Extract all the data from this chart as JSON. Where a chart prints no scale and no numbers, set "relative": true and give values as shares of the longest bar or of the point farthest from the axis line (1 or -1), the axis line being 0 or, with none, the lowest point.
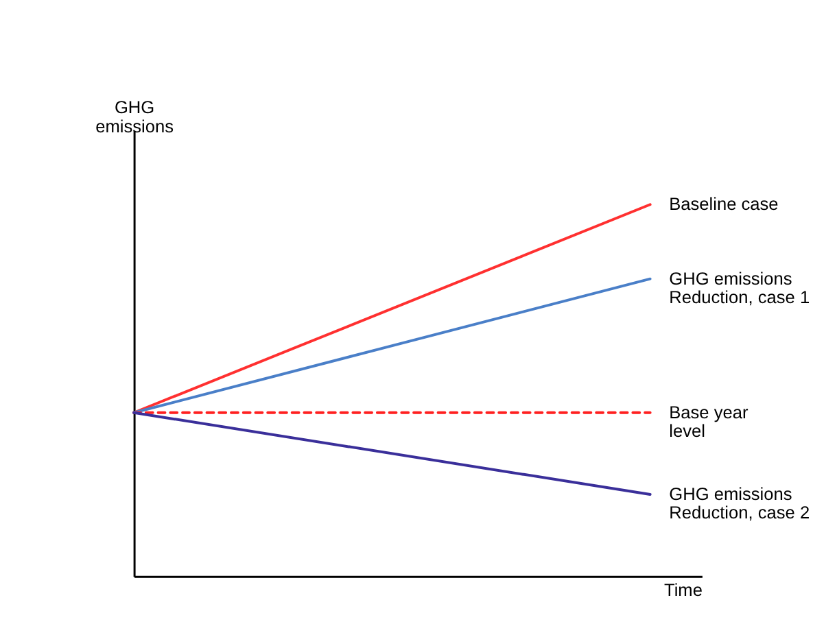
{
  "chart_data": {
    "type": "line",
    "relative": true,
    "xlabel": "Time",
    "ylabel": "GHG\nemissions",
    "categories": [
      null,
      null
    ],
    "series": [
      {
        "name": "Baseline case",
        "color": "#ff3030",
        "values": [
          0.44,
          1
        ]
      },
      {
        "name": "GHG emissions\nReduction, case 1",
        "color": "#4a7fc8",
        "values": [
          0.44,
          0.8
        ]
      },
      {
        "name": "Base year\nlevel",
        "color": "#ff2020",
        "line_style": "dashed",
        "values": [
          0.44,
          0.44
        ]
      },
      {
        "name": "GHG emissions\nReduction, case 2",
        "color": "#3a2f9a",
        "values": [
          0.44,
          0.22
        ]
      }
    ],
    "legend": false,
    "grid": false,
    "tick_labels": false,
    "marker": "none"
  }
}
